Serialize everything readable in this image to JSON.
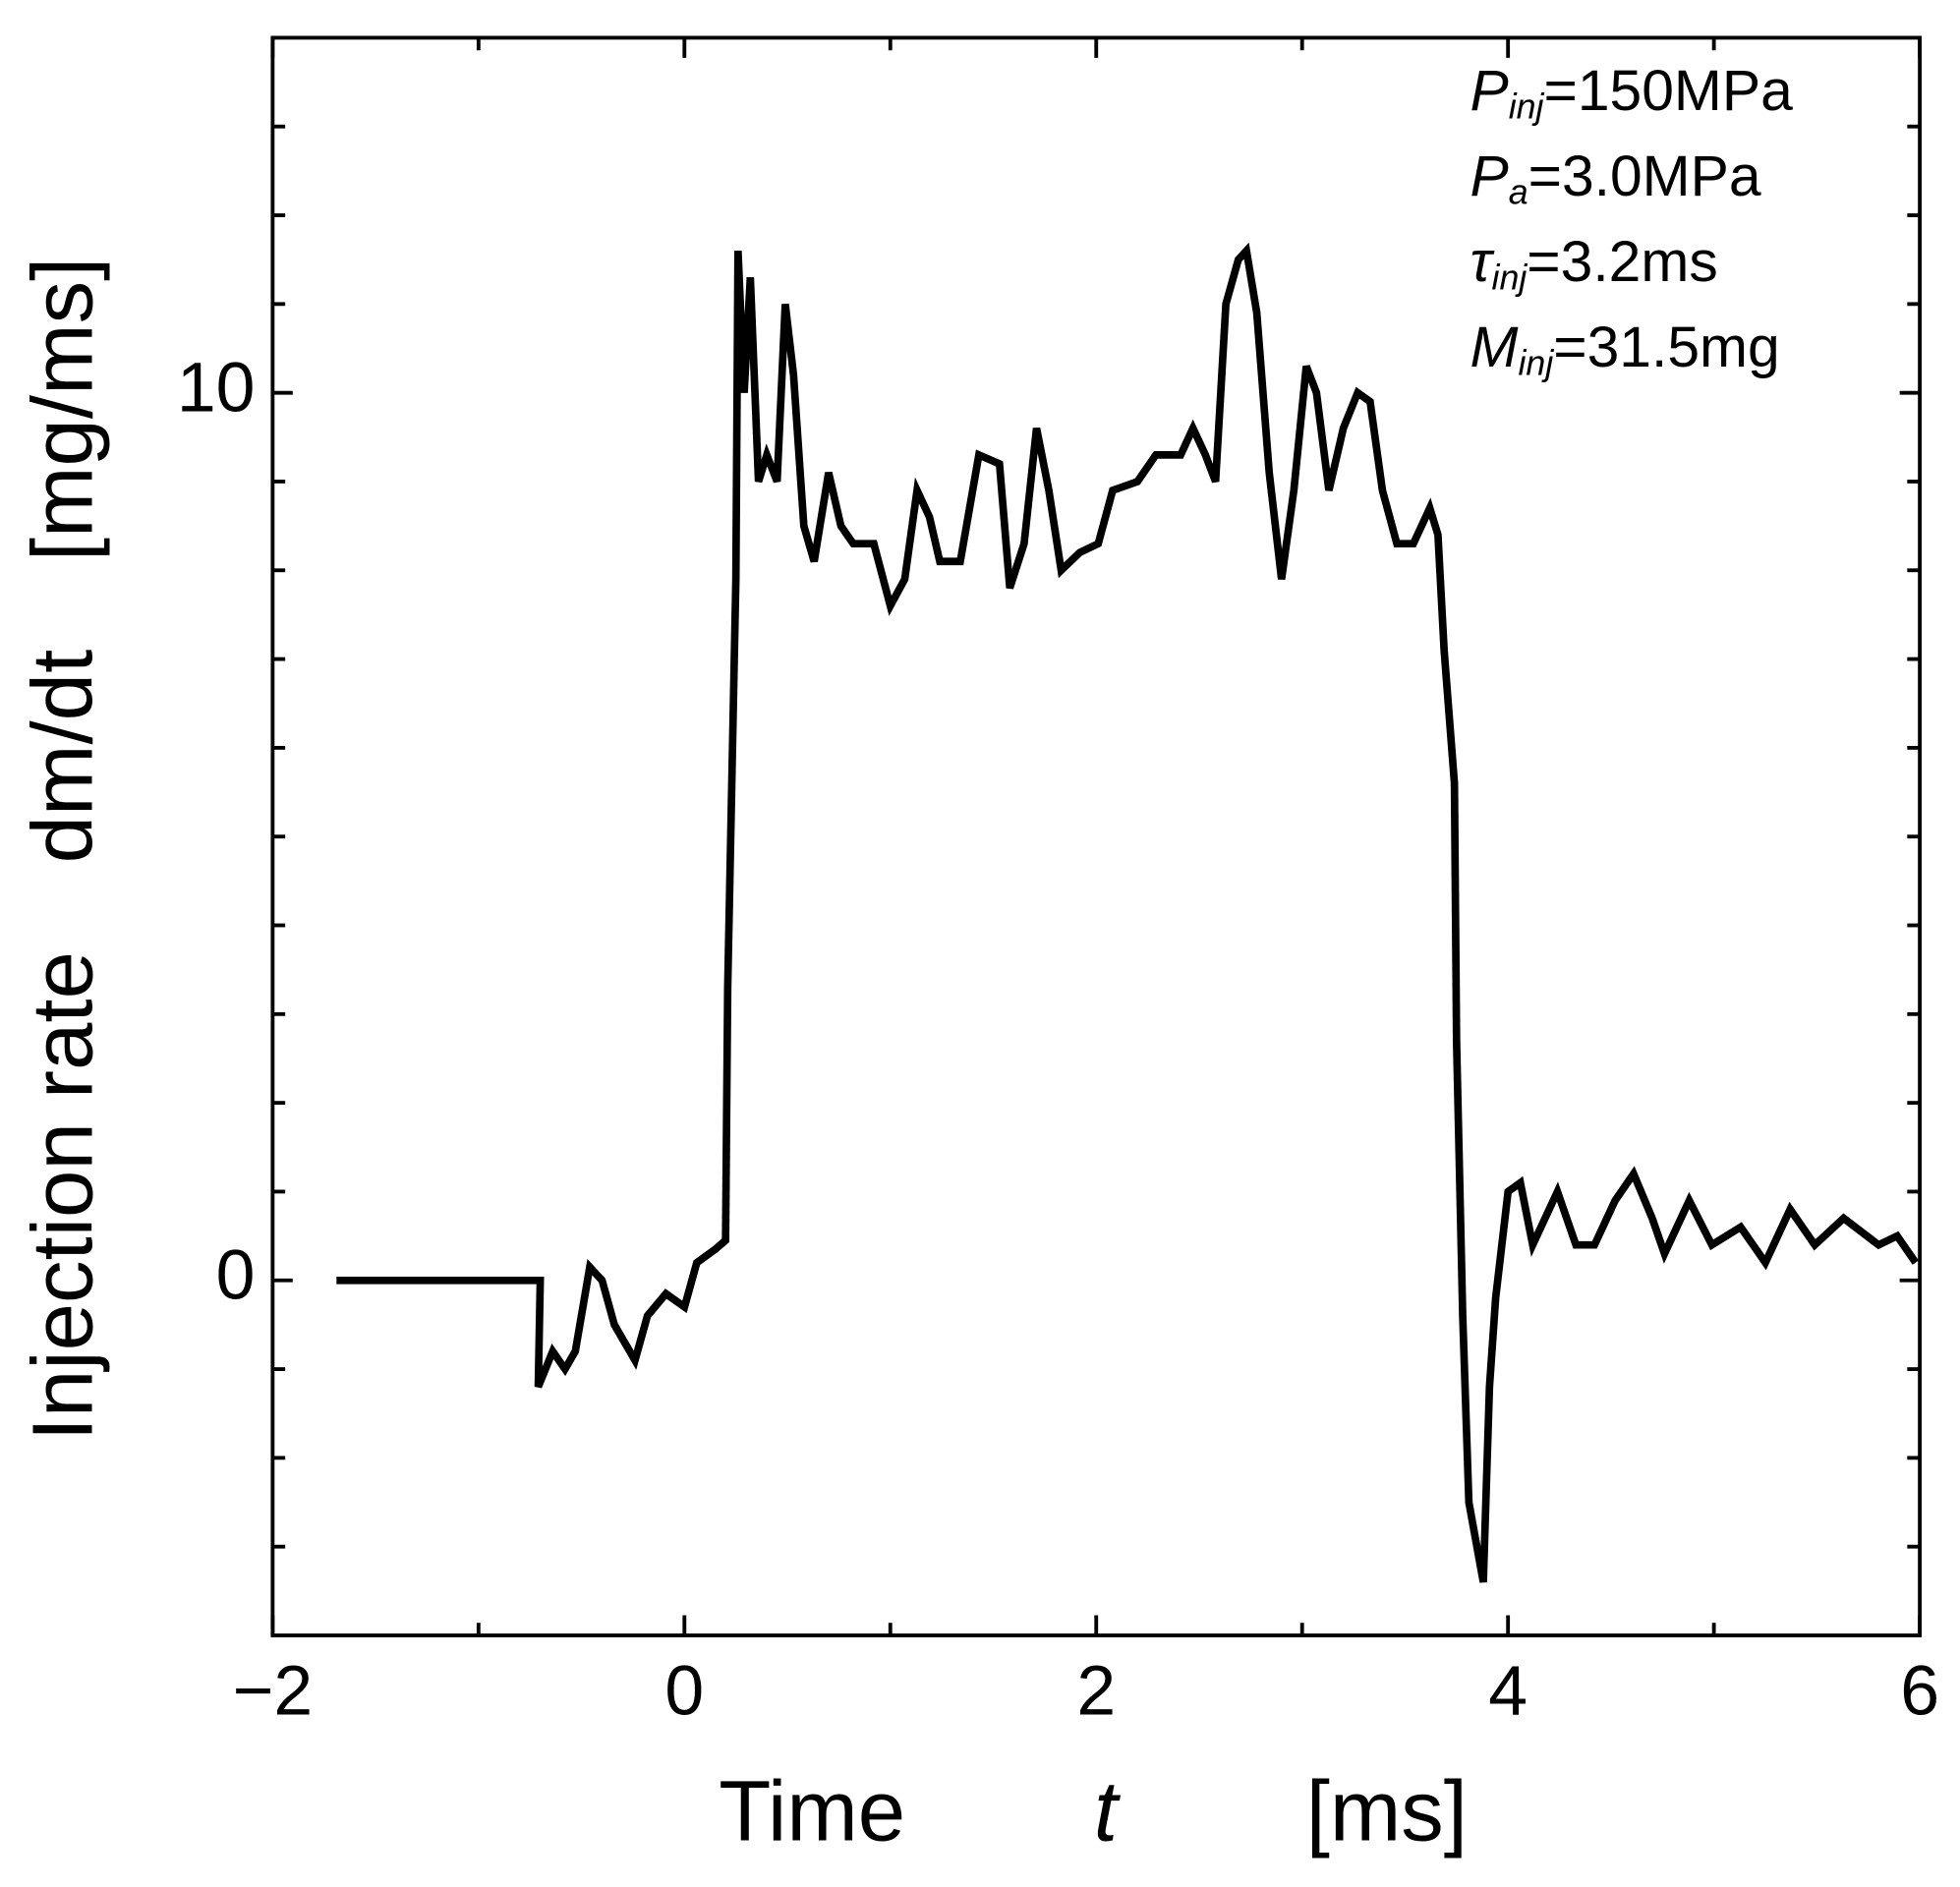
{
  "chart_data": {
    "type": "line",
    "x_label": {
      "parts": [
        "Time",
        "t",
        "[ms]"
      ]
    },
    "y_label": {
      "parts": [
        "Injection  rate",
        "dm/dt",
        "[mg/ms]"
      ]
    },
    "annotations": [
      {
        "symbol": "P",
        "subscript": "inj",
        "text": "=150MPa"
      },
      {
        "symbol": "P",
        "subscript": "a",
        "text": "=3.0MPa"
      },
      {
        "symbol": "τ",
        "subscript": "inj",
        "text": "=3.2ms"
      },
      {
        "symbol": "M",
        "subscript": "inj",
        "text": "=31.5mg"
      }
    ],
    "xlim": [
      -2,
      6
    ],
    "ylim": [
      -4,
      14
    ],
    "xticks": [
      {
        "value": -2,
        "label": "−2"
      },
      0,
      2,
      4,
      6
    ],
    "xminor_ticks": [
      -1,
      1,
      3,
      5
    ],
    "yticks": [
      0,
      10
    ],
    "yminor_ticks": [
      -3,
      -2,
      -1,
      1,
      2,
      3,
      4,
      5,
      6,
      7,
      8,
      9,
      11,
      12,
      13
    ],
    "series": [
      {
        "color": "#000000",
        "x": [
          -1.69,
          -0.7,
          -0.71,
          -0.64,
          -0.58,
          -0.53,
          -0.46,
          -0.4,
          -0.34,
          -0.24,
          -0.18,
          -0.09,
          0,
          0.06,
          0.15,
          0.2,
          0.21,
          0.25,
          0.26,
          0.29,
          0.32,
          0.36,
          0.4,
          0.45,
          0.49,
          0.53,
          0.58,
          0.63,
          0.7,
          0.76,
          0.82,
          0.92,
          1.0,
          1.07,
          1.13,
          1.19,
          1.24,
          1.34,
          1.43,
          1.53,
          1.58,
          1.65,
          1.71,
          1.77,
          1.83,
          1.92,
          2.01,
          2.08,
          2.2,
          2.29,
          2.41,
          2.47,
          2.53,
          2.58,
          2.63,
          2.69,
          2.73,
          2.78,
          2.84,
          2.9,
          2.96,
          3.02,
          3.07,
          3.13,
          3.2,
          3.27,
          3.33,
          3.39,
          3.46,
          3.54,
          3.62,
          3.66,
          3.69,
          3.74,
          3.75,
          3.78,
          3.81,
          3.88,
          3.91,
          3.94,
          4.0,
          4.06,
          4.12,
          4.24,
          4.33,
          4.42,
          4.52,
          4.61,
          4.7,
          4.76,
          4.88,
          4.99,
          5.13,
          5.25,
          5.37,
          5.49,
          5.63,
          5.8,
          5.89,
          5.98
        ],
        "values": [
          0,
          0,
          -1.2,
          -0.8,
          -1.0,
          -0.8,
          0.15,
          0,
          -0.5,
          -0.9,
          -0.4,
          -0.15,
          -0.3,
          0.2,
          0.35,
          0.45,
          3.3,
          7.9,
          11.6,
          10.0,
          11.3,
          9.0,
          9.3,
          9.0,
          11.0,
          10.2,
          8.5,
          8.1,
          9.1,
          8.5,
          8.3,
          8.3,
          7.6,
          7.9,
          8.9,
          8.6,
          8.1,
          8.1,
          9.3,
          9.2,
          7.8,
          8.3,
          9.6,
          8.9,
          8.0,
          8.2,
          8.3,
          8.9,
          9.0,
          9.3,
          9.3,
          9.6,
          9.3,
          9.0,
          11.0,
          11.5,
          11.6,
          10.9,
          9.1,
          7.9,
          8.9,
          10.3,
          10.0,
          8.9,
          9.6,
          10.0,
          9.9,
          8.9,
          8.3,
          8.3,
          8.7,
          8.4,
          7.1,
          5.6,
          2.7,
          -0.4,
          -2.5,
          -3.4,
          -1.2,
          -0.2,
          1.0,
          1.1,
          0.4,
          1.0,
          0.4,
          0.4,
          0.9,
          1.2,
          0.7,
          0.3,
          0.9,
          0.4,
          0.6,
          0.2,
          0.8,
          0.4,
          0.7,
          0.4,
          0.5,
          0.2
        ]
      }
    ]
  }
}
